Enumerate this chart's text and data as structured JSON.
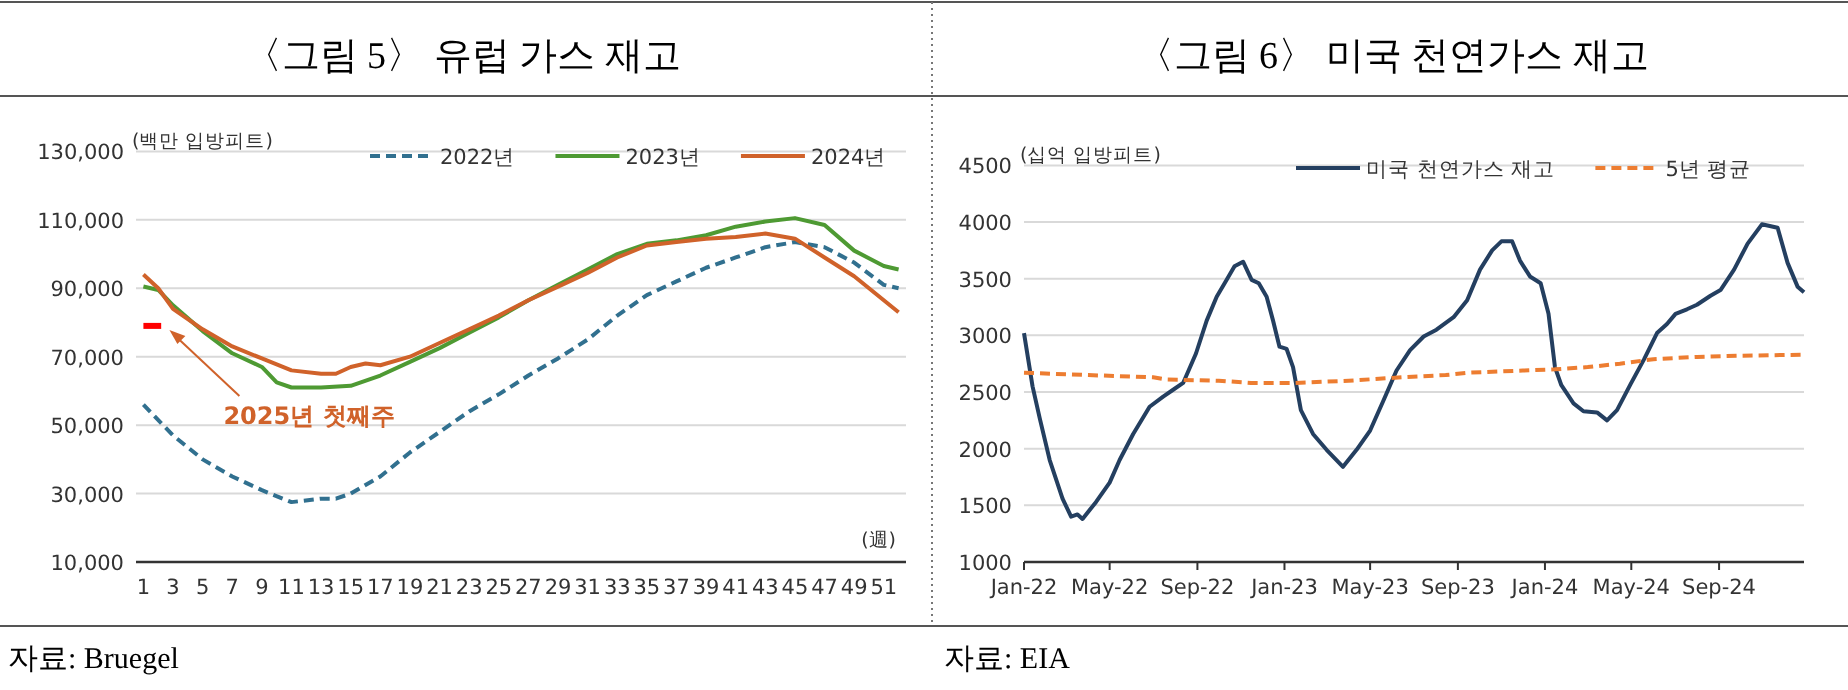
{
  "chart_data": [
    {
      "type": "line",
      "title": "〈그림 5〉 유럽 가스 재고",
      "ylabel": "(백만 입방피트)",
      "xlabel": "(週)",
      "xlim": [
        0.5,
        52.5
      ],
      "ylim": [
        10000,
        130000
      ],
      "xticks": [
        1,
        3,
        5,
        7,
        9,
        11,
        13,
        15,
        17,
        19,
        21,
        23,
        25,
        27,
        29,
        31,
        33,
        35,
        37,
        39,
        41,
        43,
        45,
        47,
        49,
        51
      ],
      "yticks": [
        {
          "value": 10000,
          "label": "10,000"
        },
        {
          "value": 30000,
          "label": "30,000"
        },
        {
          "value": 50000,
          "label": "50,000"
        },
        {
          "value": 70000,
          "label": "70,000"
        },
        {
          "value": 90000,
          "label": "90,000"
        },
        {
          "value": 110000,
          "label": "110,000"
        },
        {
          "value": 130000,
          "label": "130,000"
        }
      ],
      "grid": "y",
      "legend": "top",
      "series": [
        {
          "name": "2022년",
          "color": "#31708f",
          "line_style": "dashed",
          "x": [
            1,
            3,
            5,
            7,
            9,
            11,
            13,
            14,
            15,
            17,
            19,
            21,
            23,
            25,
            27,
            29,
            31,
            33,
            35,
            37,
            39,
            41,
            43,
            45,
            47,
            49,
            51,
            52
          ],
          "values": [
            56000,
            47000,
            40000,
            35000,
            31000,
            27500,
            28500,
            28500,
            30000,
            35000,
            42000,
            48000,
            54000,
            59000,
            64500,
            69500,
            75000,
            82000,
            88000,
            92000,
            96000,
            99000,
            102000,
            103500,
            102000,
            97500,
            91000,
            90000
          ]
        },
        {
          "name": "2023년",
          "color": "#4e9a33",
          "line_style": "solid",
          "x": [
            1,
            2,
            3,
            5,
            7,
            9,
            10,
            11,
            13,
            15,
            17,
            19,
            21,
            23,
            25,
            27,
            29,
            31,
            33,
            35,
            37,
            39,
            41,
            43,
            45,
            47,
            49,
            51,
            52
          ],
          "values": [
            90500,
            89500,
            85000,
            77500,
            71000,
            67000,
            62500,
            61000,
            61000,
            61500,
            64500,
            68500,
            72500,
            77000,
            81500,
            86500,
            91000,
            95500,
            100000,
            103000,
            104000,
            105500,
            108000,
            109500,
            110500,
            108500,
            101000,
            96500,
            95500
          ]
        },
        {
          "color": "#ff0000",
          "line_style": "solid",
          "x": [
            1,
            2.2
          ],
          "values": [
            79000,
            79000
          ]
        },
        {
          "name": "2024년",
          "color": "#d0622a",
          "line_style": "solid",
          "x": [
            1,
            2,
            3,
            5,
            7,
            9,
            11,
            13,
            14,
            15,
            16,
            17,
            19,
            21,
            23,
            25,
            27,
            29,
            31,
            33,
            35,
            37,
            39,
            41,
            43,
            45,
            47,
            49,
            51,
            52
          ],
          "values": [
            94000,
            90000,
            84000,
            78000,
            73000,
            69500,
            66000,
            65000,
            65000,
            67000,
            68000,
            67500,
            70000,
            74000,
            78000,
            82000,
            86500,
            90500,
            94500,
            99000,
            102500,
            103500,
            104500,
            105000,
            106000,
            104500,
            99000,
            93500,
            86500,
            83000
          ]
        }
      ],
      "annotations": [
        "2025년  첫째주",
        "자료: Bruegel"
      ]
    },
    {
      "type": "line",
      "title": "〈그림 6〉 미국 천연가스 재고",
      "ylabel": "(십억 입방피트)",
      "xlim": [
        "2022-01-01",
        "2024-12-29"
      ],
      "ylim": [
        1000,
        4500
      ],
      "xticks": [
        {
          "value": "2022-01-01",
          "label": "Jan-22"
        },
        {
          "value": "2022-05-01",
          "label": "May-22"
        },
        {
          "value": "2022-09-01",
          "label": "Sep-22"
        },
        {
          "value": "2023-01-01",
          "label": "Jan-23"
        },
        {
          "value": "2023-05-01",
          "label": "May-23"
        },
        {
          "value": "2023-09-01",
          "label": "Sep-23"
        },
        {
          "value": "2024-01-01",
          "label": "Jan-24"
        },
        {
          "value": "2024-05-01",
          "label": "May-24"
        },
        {
          "value": "2024-09-01",
          "label": "Sep-24"
        }
      ],
      "yticks": [
        1000,
        1500,
        2000,
        2500,
        3000,
        3500,
        4000,
        4500
      ],
      "grid": "y",
      "legend": "top",
      "series": [
        {
          "name": "미국 천연가스 재고",
          "color": "#243f60",
          "line_style": "solid",
          "x": [
            "2022-01-01",
            "2022-01-13",
            "2022-01-23",
            "2022-02-06",
            "2022-02-24",
            "2022-03-08",
            "2022-03-17",
            "2022-03-24",
            "2022-04-12",
            "2022-05-01",
            "2022-05-15",
            "2022-06-03",
            "2022-06-26",
            "2022-07-15",
            "2022-07-29",
            "2022-08-12",
            "2022-08-30",
            "2022-09-14",
            "2022-09-28",
            "2022-10-12",
            "2022-10-23",
            "2022-11-04",
            "2022-11-16",
            "2022-11-26",
            "2022-12-07",
            "2022-12-16",
            "2022-12-25",
            "2023-01-04",
            "2023-01-13",
            "2023-01-24",
            "2023-02-10",
            "2023-03-01",
            "2023-03-24",
            "2023-04-12",
            "2023-05-01",
            "2023-05-20",
            "2023-06-07",
            "2023-06-26",
            "2023-07-15",
            "2023-08-02",
            "2023-08-26",
            "2023-09-14",
            "2023-10-02",
            "2023-10-19",
            "2023-11-01",
            "2023-11-16",
            "2023-11-27",
            "2023-12-11",
            "2023-12-26",
            "2024-01-06",
            "2024-01-15",
            "2024-01-24",
            "2024-02-10",
            "2024-02-24",
            "2024-03-14",
            "2024-03-28",
            "2024-04-11",
            "2024-04-30",
            "2024-05-19",
            "2024-06-06",
            "2024-06-20",
            "2024-07-02",
            "2024-07-18",
            "2024-08-01",
            "2024-08-20",
            "2024-09-03",
            "2024-09-22",
            "2024-10-11",
            "2024-10-31",
            "2024-11-22",
            "2024-12-06",
            "2024-12-20",
            "2024-12-29"
          ],
          "values": [
            3020,
            2550,
            2270,
            1900,
            1560,
            1400,
            1420,
            1380,
            1530,
            1700,
            1900,
            2130,
            2370,
            2460,
            2520,
            2580,
            2840,
            3130,
            3340,
            3490,
            3610,
            3650,
            3490,
            3460,
            3340,
            3130,
            2900,
            2880,
            2720,
            2340,
            2130,
            1990,
            1840,
            1990,
            2160,
            2430,
            2690,
            2870,
            2990,
            3050,
            3160,
            3310,
            3580,
            3750,
            3830,
            3830,
            3660,
            3520,
            3460,
            3190,
            2720,
            2560,
            2400,
            2330,
            2320,
            2250,
            2340,
            2570,
            2790,
            3020,
            3100,
            3190,
            3230,
            3270,
            3350,
            3400,
            3580,
            3810,
            3980,
            3950,
            3640,
            3430,
            3380
          ]
        },
        {
          "name": "5년 평균",
          "color": "#ed7d31",
          "line_style": "dashed",
          "x": [
            "2022-01-01",
            "2022-04-01",
            "2022-07-01",
            "2022-07-20",
            "2022-10-01",
            "2022-11-15",
            "2023-01-15",
            "2023-04-01",
            "2023-06-15",
            "2023-08-15",
            "2023-09-15",
            "2023-12-01",
            "2024-01-15",
            "2024-03-01",
            "2024-04-15",
            "2024-06-01",
            "2024-08-01",
            "2024-10-01",
            "2024-12-29"
          ],
          "values": [
            2670,
            2650,
            2630,
            2610,
            2600,
            2580,
            2580,
            2600,
            2630,
            2650,
            2670,
            2690,
            2700,
            2720,
            2750,
            2790,
            2810,
            2820,
            2830
          ]
        }
      ],
      "annotations": [
        "자료: EIA"
      ]
    }
  ]
}
